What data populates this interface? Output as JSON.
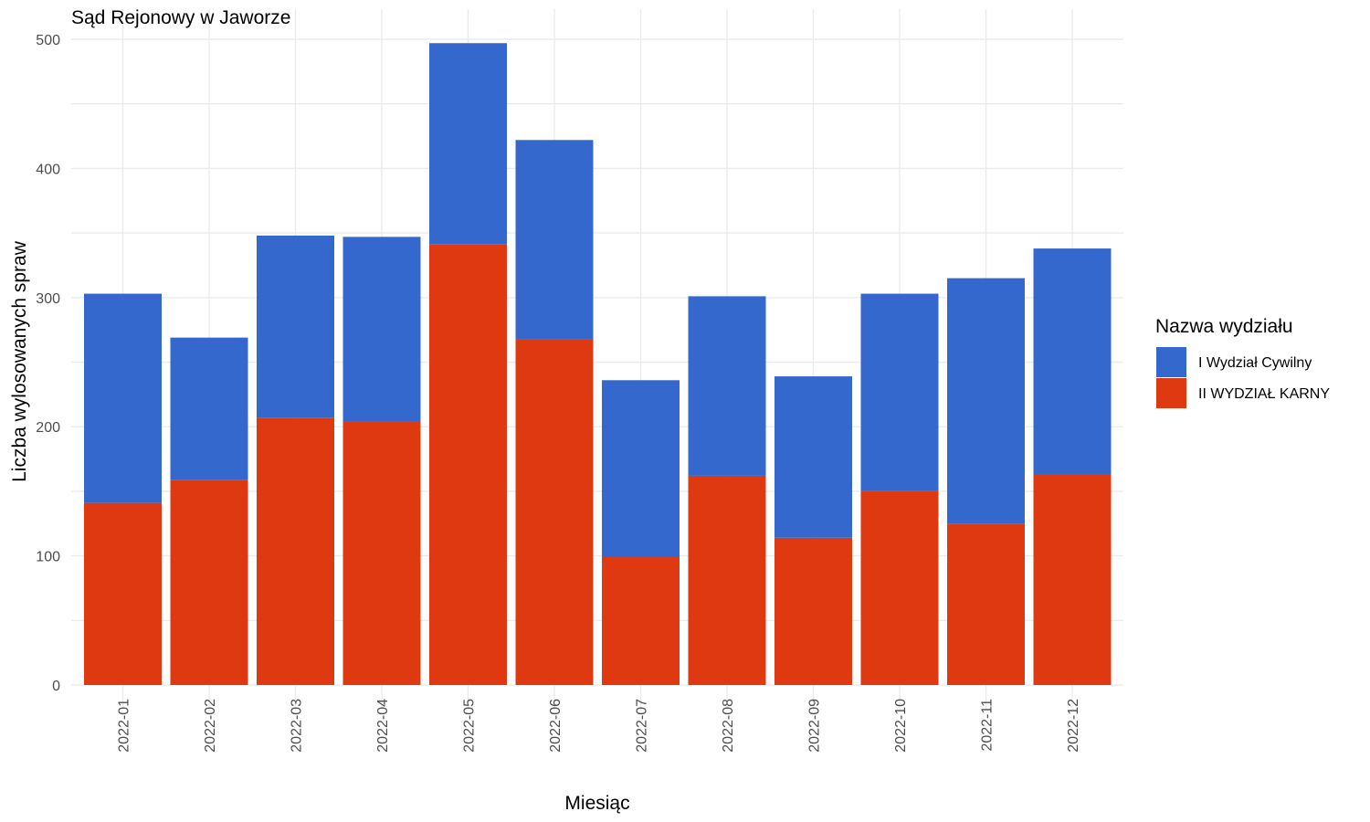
{
  "chart_data": {
    "type": "bar",
    "stacked": true,
    "title": "Sąd Rejonowy w Jaworze",
    "xlabel": "Miesiąc",
    "ylabel": "Liczba wylosowanych spraw",
    "ylim": [
      0,
      500
    ],
    "yticks": [
      "0",
      "100",
      "200",
      "300",
      "400",
      "500"
    ],
    "grid": true,
    "legend_title": "Nazwa wydziału",
    "legend_position": "right",
    "categories": [
      "2022-01",
      "2022-02",
      "2022-03",
      "2022-04",
      "2022-05",
      "2022-06",
      "2022-07",
      "2022-08",
      "2022-09",
      "2022-10",
      "2022-11",
      "2022-12"
    ],
    "series": [
      {
        "name": "I Wydział Cywilny",
        "color": "#3468CD",
        "values": [
          162,
          110,
          141,
          143,
          156,
          154,
          137,
          139,
          125,
          153,
          190,
          175
        ]
      },
      {
        "name": "II WYDZIAŁ KARNY",
        "color": "#DF3912",
        "values": [
          141,
          159,
          207,
          204,
          341,
          268,
          99,
          162,
          114,
          150,
          125,
          163
        ]
      }
    ]
  }
}
